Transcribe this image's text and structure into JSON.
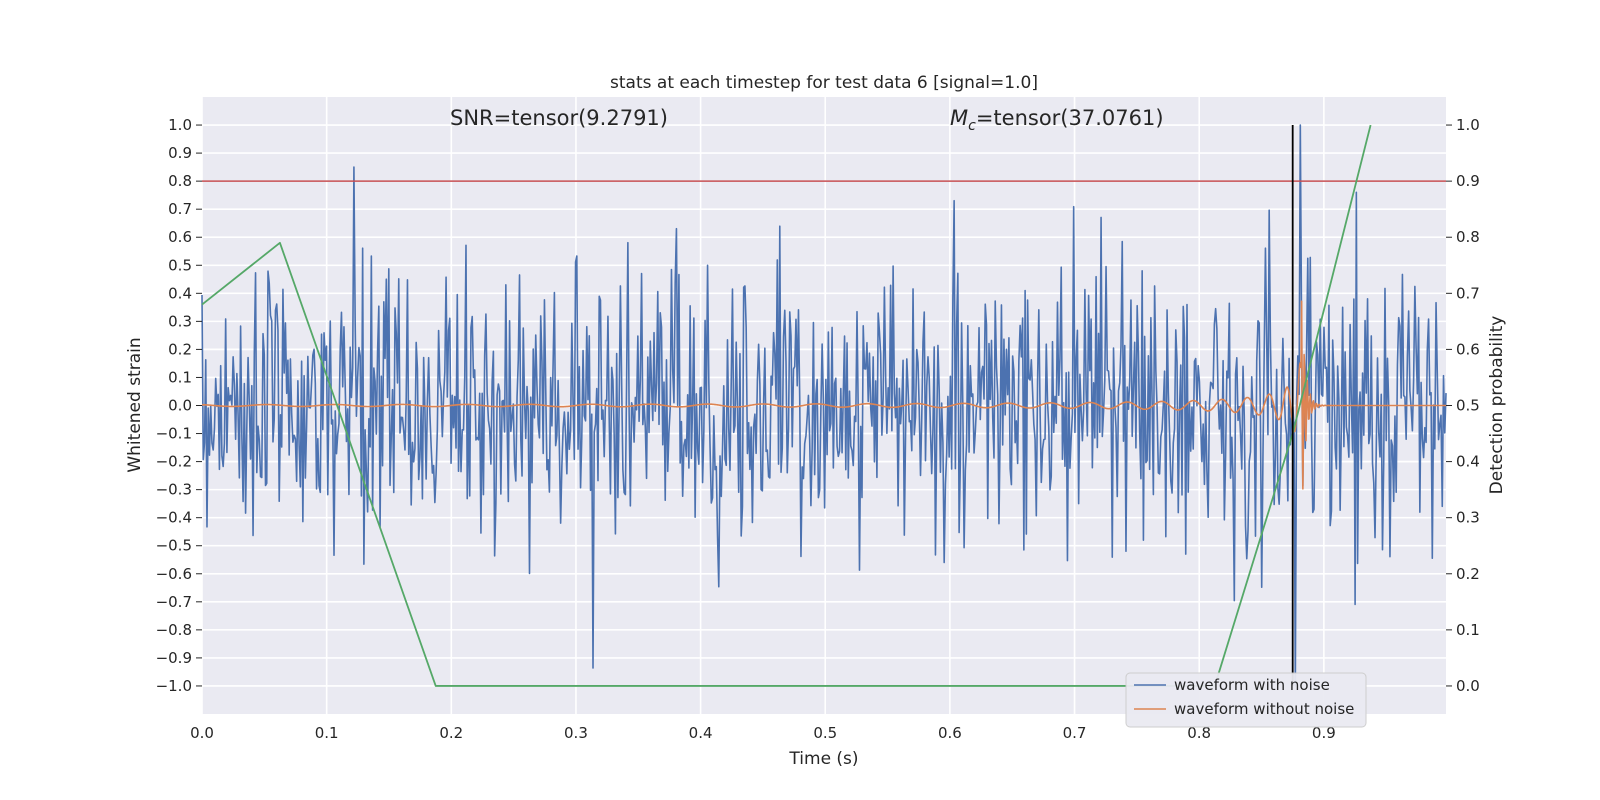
{
  "chart_data": {
    "type": "line",
    "title": "stats at each timestep for test data 6 [signal=1.0]",
    "xlabel": "Time (s)",
    "ylabel_left": "Whitened strain",
    "ylabel_right": "Detection probability",
    "xlim": [
      0.0,
      0.998
    ],
    "ylim_left": [
      -1.1,
      1.1
    ],
    "ylim_right": [
      -0.05,
      1.05
    ],
    "x_ticks": [
      0.0,
      0.1,
      0.2,
      0.3,
      0.4,
      0.5,
      0.6,
      0.7,
      0.8,
      0.9
    ],
    "x_tick_labels": [
      "0.0",
      "0.1",
      "0.2",
      "0.3",
      "0.4",
      "0.5",
      "0.6",
      "0.7",
      "0.8",
      "0.9"
    ],
    "y_left_ticks": [
      1.0,
      0.9,
      0.8,
      0.7,
      0.6,
      0.5,
      0.4,
      0.3,
      0.2,
      0.1,
      0.0,
      -0.1,
      -0.2,
      -0.3,
      -0.4,
      -0.5,
      -0.6,
      -0.7,
      -0.8,
      -0.9,
      -1.0
    ],
    "y_left_tick_labels": [
      "1.0",
      "0.9",
      "0.8",
      "0.7",
      "0.6",
      "0.5",
      "0.4",
      "0.3",
      "0.2",
      "0.1",
      "0.0",
      "−0.1",
      "−0.2",
      "−0.3",
      "−0.4",
      "−0.5",
      "−0.6",
      "−0.7",
      "−0.8",
      "−0.9",
      "−1.0"
    ],
    "y_right_ticks": [
      1.0,
      0.9,
      0.8,
      0.7,
      0.6,
      0.5,
      0.4,
      0.3,
      0.2,
      0.1,
      0.0
    ],
    "y_right_tick_labels": [
      "1.0",
      "0.9",
      "0.8",
      "0.7",
      "0.6",
      "0.5",
      "0.4",
      "0.3",
      "0.2",
      "0.1",
      "0.0"
    ],
    "grid": true,
    "legend_position": "lower-right",
    "annotations": {
      "snr_text": "SNR=tensor(9.2791)",
      "mc_symbol": "M",
      "mc_subscript": "c",
      "mc_value": "=tensor(37.0761)"
    },
    "threshold_line": {
      "y": 0.8,
      "color": "#c44e52"
    },
    "vertical_marker": {
      "x": 0.875,
      "y_range": [
        -1.0,
        1.0
      ],
      "color": "#000000"
    },
    "series": [
      {
        "name": "waveform with noise",
        "color": "#4c72b0",
        "axis": "left",
        "noise_amplitude": 0.24,
        "x_range": [
          0.0,
          0.998
        ],
        "samples": 1000,
        "peak": {
          "x": 0.881,
          "y": 1.0
        },
        "trough": {
          "x": 0.877,
          "y": -1.0
        }
      },
      {
        "name": "waveform without noise",
        "color": "#dd8452",
        "axis": "left",
        "description": "chirp",
        "x_range": [
          0.0,
          0.998
        ],
        "merger_x": 0.882,
        "max_amplitude": 0.44
      },
      {
        "name": "detection probability",
        "color": "#55a868",
        "axis": "right",
        "x": [
          0.0,
          0.0625,
          0.1875,
          0.25,
          0.3125,
          0.375,
          0.4375,
          0.5,
          0.5625,
          0.625,
          0.6875,
          0.75,
          0.8125,
          0.875,
          0.9375
        ],
        "values": [
          0.68,
          0.79,
          0.0,
          0.0,
          0.0,
          0.0,
          0.0,
          0.0,
          0.0,
          0.0,
          0.0,
          0.0,
          0.0,
          0.45,
          1.0
        ]
      }
    ]
  }
}
